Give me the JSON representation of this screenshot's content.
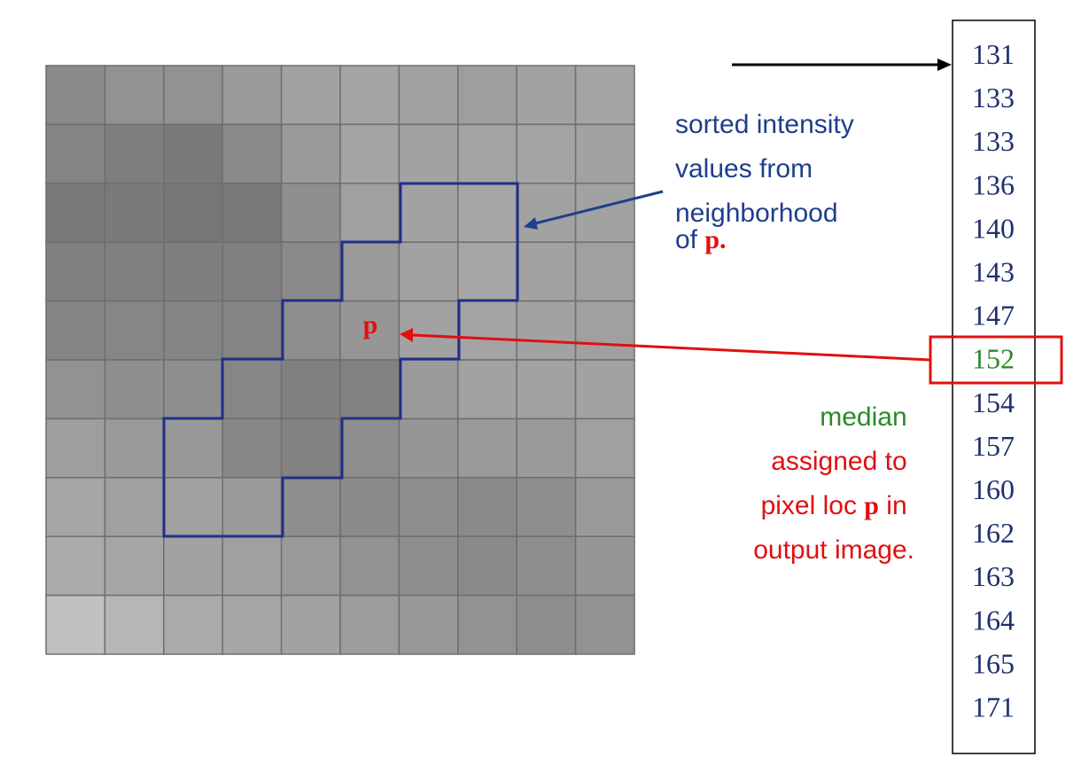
{
  "grid": {
    "rows": 10,
    "cols": 10,
    "cells": [
      [
        "#8a8a8a",
        "#929292",
        "#929292",
        "#9a9a9a",
        "#a2a2a2",
        "#a4a4a4",
        "#a2a2a2",
        "#9e9e9e",
        "#a2a2a2",
        "#a4a4a4"
      ],
      [
        "#848484",
        "#7e7e7e",
        "#7a7a7a",
        "#8a8a8a",
        "#9a9a9a",
        "#a4a4a4",
        "#a2a2a2",
        "#a4a4a4",
        "#a4a4a4",
        "#a2a2a2"
      ],
      [
        "#7a7a7a",
        "#7a7a7a",
        "#767676",
        "#7a7a7a",
        "#8e8e8e",
        "#a0a0a0",
        "#a2a2a2",
        "#a6a6a6",
        "#a2a2a2",
        "#a2a2a2"
      ],
      [
        "#808080",
        "#808080",
        "#7e7e7e",
        "#808080",
        "#8a8a8a",
        "#9a9a9a",
        "#a2a2a2",
        "#a6a6a6",
        "#a2a2a2",
        "#a0a0a0"
      ],
      [
        "#848484",
        "#868686",
        "#848484",
        "#848484",
        "#8e8e8e",
        "#969696",
        "#a2a2a2",
        "#a4a4a4",
        "#a2a2a2",
        "#a0a0a0"
      ],
      [
        "#929292",
        "#8e8e8e",
        "#8e8e8e",
        "#868686",
        "#808080",
        "#828282",
        "#9a9a9a",
        "#a2a2a2",
        "#a2a2a2",
        "#a2a2a2"
      ],
      [
        "#9e9e9e",
        "#9a9a9a",
        "#989898",
        "#888888",
        "#828282",
        "#8e8e8e",
        "#969696",
        "#9a9a9a",
        "#9a9a9a",
        "#a0a0a0"
      ],
      [
        "#a6a6a6",
        "#a0a0a0",
        "#a0a0a0",
        "#9a9a9a",
        "#8e8e8e",
        "#8a8a8a",
        "#8e8e8e",
        "#8a8a8a",
        "#8e8e8e",
        "#9a9a9a"
      ],
      [
        "#ababab",
        "#a6a6a6",
        "#a2a2a2",
        "#a0a0a0",
        "#9a9a9a",
        "#929292",
        "#8e8e8e",
        "#8a8a8a",
        "#8e8e8e",
        "#969696"
      ],
      [
        "#c0c0c0",
        "#b6b6b6",
        "#aaaaaa",
        "#a6a6a6",
        "#a2a2a2",
        "#9c9c9c",
        "#989898",
        "#929292",
        "#8e8e8e",
        "#929292"
      ]
    ]
  },
  "neighborhood_color": "#1f2f8a",
  "pixel_label": "p",
  "annotation_top": {
    "line1": "sorted intensity",
    "line2": "values from",
    "line3": "neighborhood",
    "line4_prefix": "of ",
    "line4_bold": "p.",
    "text_color": "#1f3e8c",
    "accent_color": "#e01010"
  },
  "annotation_bottom": {
    "line1": "median",
    "line2": "assigned to",
    "line3_prefix": "pixel loc ",
    "line3_bold": "p",
    "line3_suffix": " in",
    "line4": "output image.",
    "median_color": "#2a8a2a",
    "text_color": "#e01010"
  },
  "sorted_values": [
    "131",
    "133",
    "133",
    "136",
    "140",
    "143",
    "147",
    "152",
    "154",
    "157",
    "160",
    "162",
    "163",
    "164",
    "165",
    "171"
  ],
  "median_index": 7,
  "value_color": "#1f2f6e",
  "median_color": "#2a8a2a",
  "highlight_color": "#e01010"
}
